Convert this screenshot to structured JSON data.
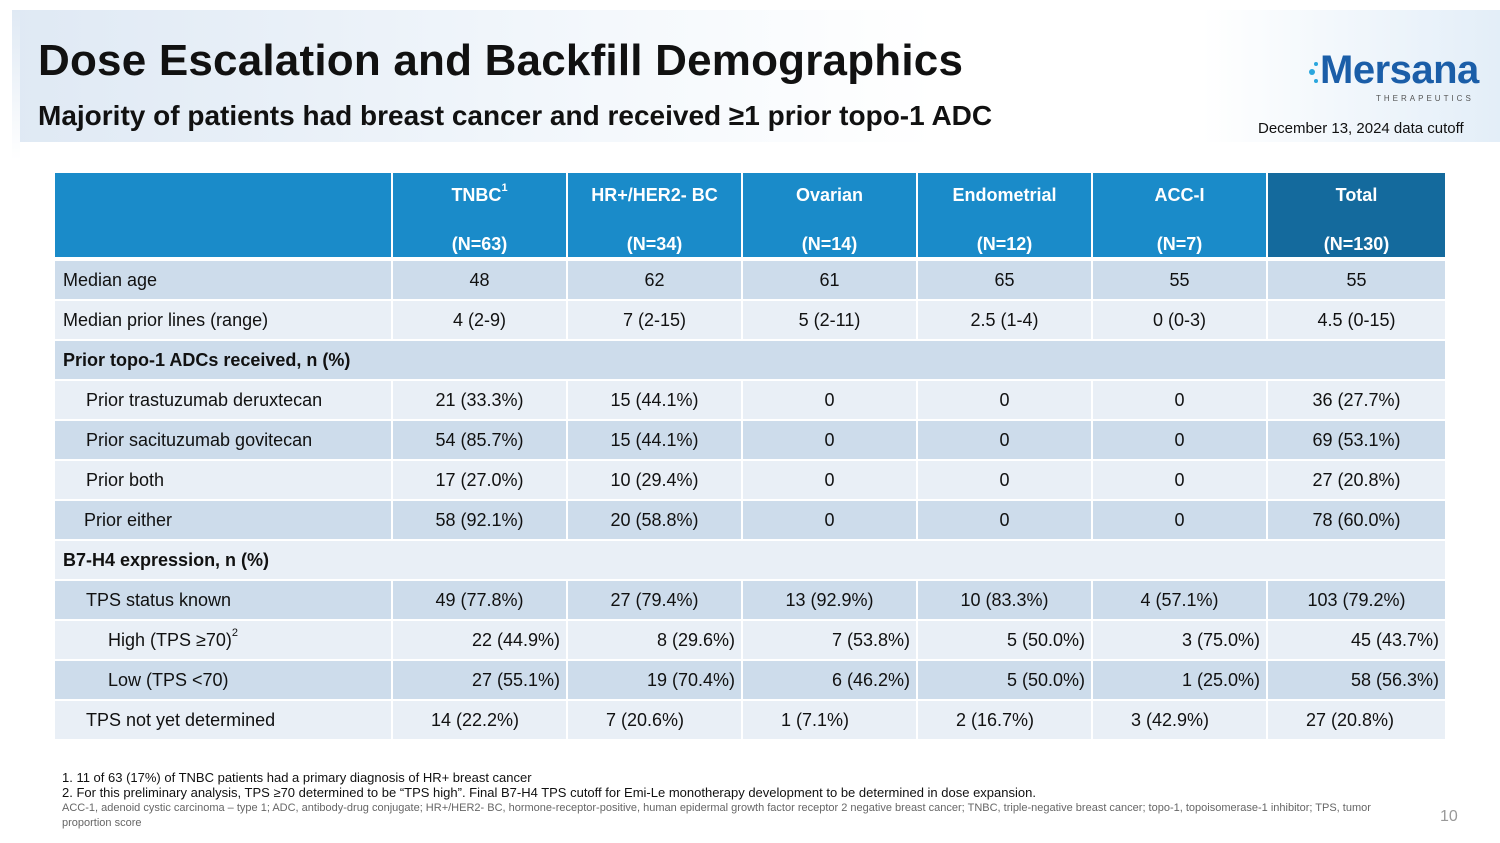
{
  "header": {
    "title": "Dose Escalation and Backfill Demographics",
    "subtitle": "Majority of patients had breast cancer and received ≥1 prior topo-1 ADC",
    "cutoff": "December 13, 2024 data cutoff"
  },
  "logo": {
    "name": "Mersana",
    "tagline": "THERAPEUTICS",
    "color": "#1b5ea8"
  },
  "table": {
    "columns": [
      {
        "name": "TNBC",
        "sup": "1",
        "n": "(N=63)"
      },
      {
        "name": "HR+/HER2- BC",
        "sup": "",
        "n": "(N=34)"
      },
      {
        "name": "Ovarian",
        "sup": "",
        "n": "(N=14)"
      },
      {
        "name": "Endometrial",
        "sup": "",
        "n": "(N=12)"
      },
      {
        "name": "ACC-I",
        "sup": "",
        "n": "(N=7)"
      },
      {
        "name": "Total",
        "sup": "",
        "n": "(N=130)"
      }
    ],
    "rows": {
      "median_age": {
        "label": "Median age",
        "values": [
          "48",
          "62",
          "61",
          "65",
          "55",
          "55"
        ]
      },
      "median_prior_lines": {
        "label": "Median prior lines (range)",
        "values": [
          "4 (2-9)",
          "7 (2-15)",
          "5 (2-11)",
          "2.5 (1-4)",
          "0 (0-3)",
          "4.5 (0-15)"
        ]
      },
      "prior_topo_section": {
        "label": "Prior topo-1 ADCs received, n (%)"
      },
      "prior_tdxd": {
        "label": "Prior trastuzumab deruxtecan",
        "values": [
          "21 (33.3%)",
          "15 (44.1%)",
          "0",
          "0",
          "0",
          "36 (27.7%)"
        ]
      },
      "prior_sg": {
        "label": "Prior sacituzumab govitecan",
        "values": [
          "54 (85.7%)",
          "15 (44.1%)",
          "0",
          "0",
          "0",
          "69 (53.1%)"
        ]
      },
      "prior_both": {
        "label": "Prior both",
        "values": [
          "17 (27.0%)",
          "10 (29.4%)",
          "0",
          "0",
          "0",
          "27 (20.8%)"
        ]
      },
      "prior_either": {
        "label": "Prior either",
        "values": [
          "58 (92.1%)",
          "20 (58.8%)",
          "0",
          "0",
          "0",
          "78 (60.0%)"
        ]
      },
      "b7h4_section": {
        "label": "B7-H4 expression, n (%)"
      },
      "tps_known": {
        "label": "TPS status known",
        "values": [
          "49 (77.8%)",
          "27 (79.4%)",
          "13 (92.9%)",
          "10 (83.3%)",
          "4 (57.1%)",
          "103 (79.2%)"
        ]
      },
      "tps_high": {
        "label": "High (TPS ≥70)",
        "sup": "2",
        "values": [
          "22 (44.9%)",
          "8 (29.6%)",
          "7 (53.8%)",
          "5 (50.0%)",
          "3 (75.0%)",
          "45 (43.7%)"
        ]
      },
      "tps_low": {
        "label": "Low (TPS <70)",
        "values": [
          "27 (55.1%)",
          "19 (70.4%)",
          "6 (46.2%)",
          "5 (50.0%)",
          "1 (25.0%)",
          "58 (56.3%)"
        ]
      },
      "tps_not_determined": {
        "label": "TPS not yet determined",
        "values": [
          "14 (22.2%)",
          "7 (20.6%)",
          "1 (7.1%)",
          "2 (16.7%)",
          "3 (42.9%)",
          "27 (20.8%)"
        ]
      }
    }
  },
  "footnotes": {
    "note1": "1. 11 of 63 (17%) of TNBC patients had a primary diagnosis of HR+ breast cancer",
    "note2": "2. For this preliminary analysis, TPS ≥70 determined to be “TPS high”. Final B7-H4 TPS cutoff for Emi-Le monotherapy development to be determined in dose expansion.",
    "abbreviations": "ACC-1, adenoid cystic carcinoma – type 1; ADC, antibody-drug conjugate; HR+/HER2- BC, hormone-receptor-positive, human epidermal growth factor receptor 2 negative breast cancer; TNBC, triple-negative breast cancer; topo-1, topoisomerase-1 inhibitor; TPS, tumor proportion score"
  },
  "page_number": "10",
  "colors": {
    "header_blue": "#1a8bc9",
    "total_blue": "#146a9d",
    "row_dark": "#cddceb",
    "row_light": "#e9eff6"
  }
}
